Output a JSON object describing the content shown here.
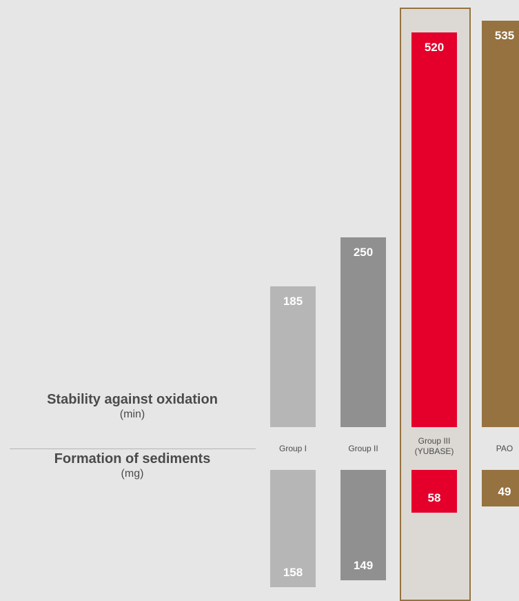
{
  "chart_data": {
    "type": "bar",
    "categories": [
      "Group I",
      "Group II",
      "Group III\n(YUBASE)",
      "PAO"
    ],
    "highlighted_category": "Group III\n(YUBASE)",
    "series": [
      {
        "title": "Stability against oxidation",
        "unit": "(min)",
        "values": [
          185,
          250,
          520,
          535
        ]
      },
      {
        "title": "Formation of sediments",
        "unit": "(mg)",
        "values": [
          158,
          149,
          58,
          49
        ]
      }
    ],
    "colors": {
      "Group I": "#b6b6b6",
      "Group II": "#8f908f",
      "Group III\n(YUBASE)": "#e4002b",
      "PAO": "#957240",
      "highlight_border": "#957240",
      "highlight_fill": "#dcd9d4"
    }
  }
}
